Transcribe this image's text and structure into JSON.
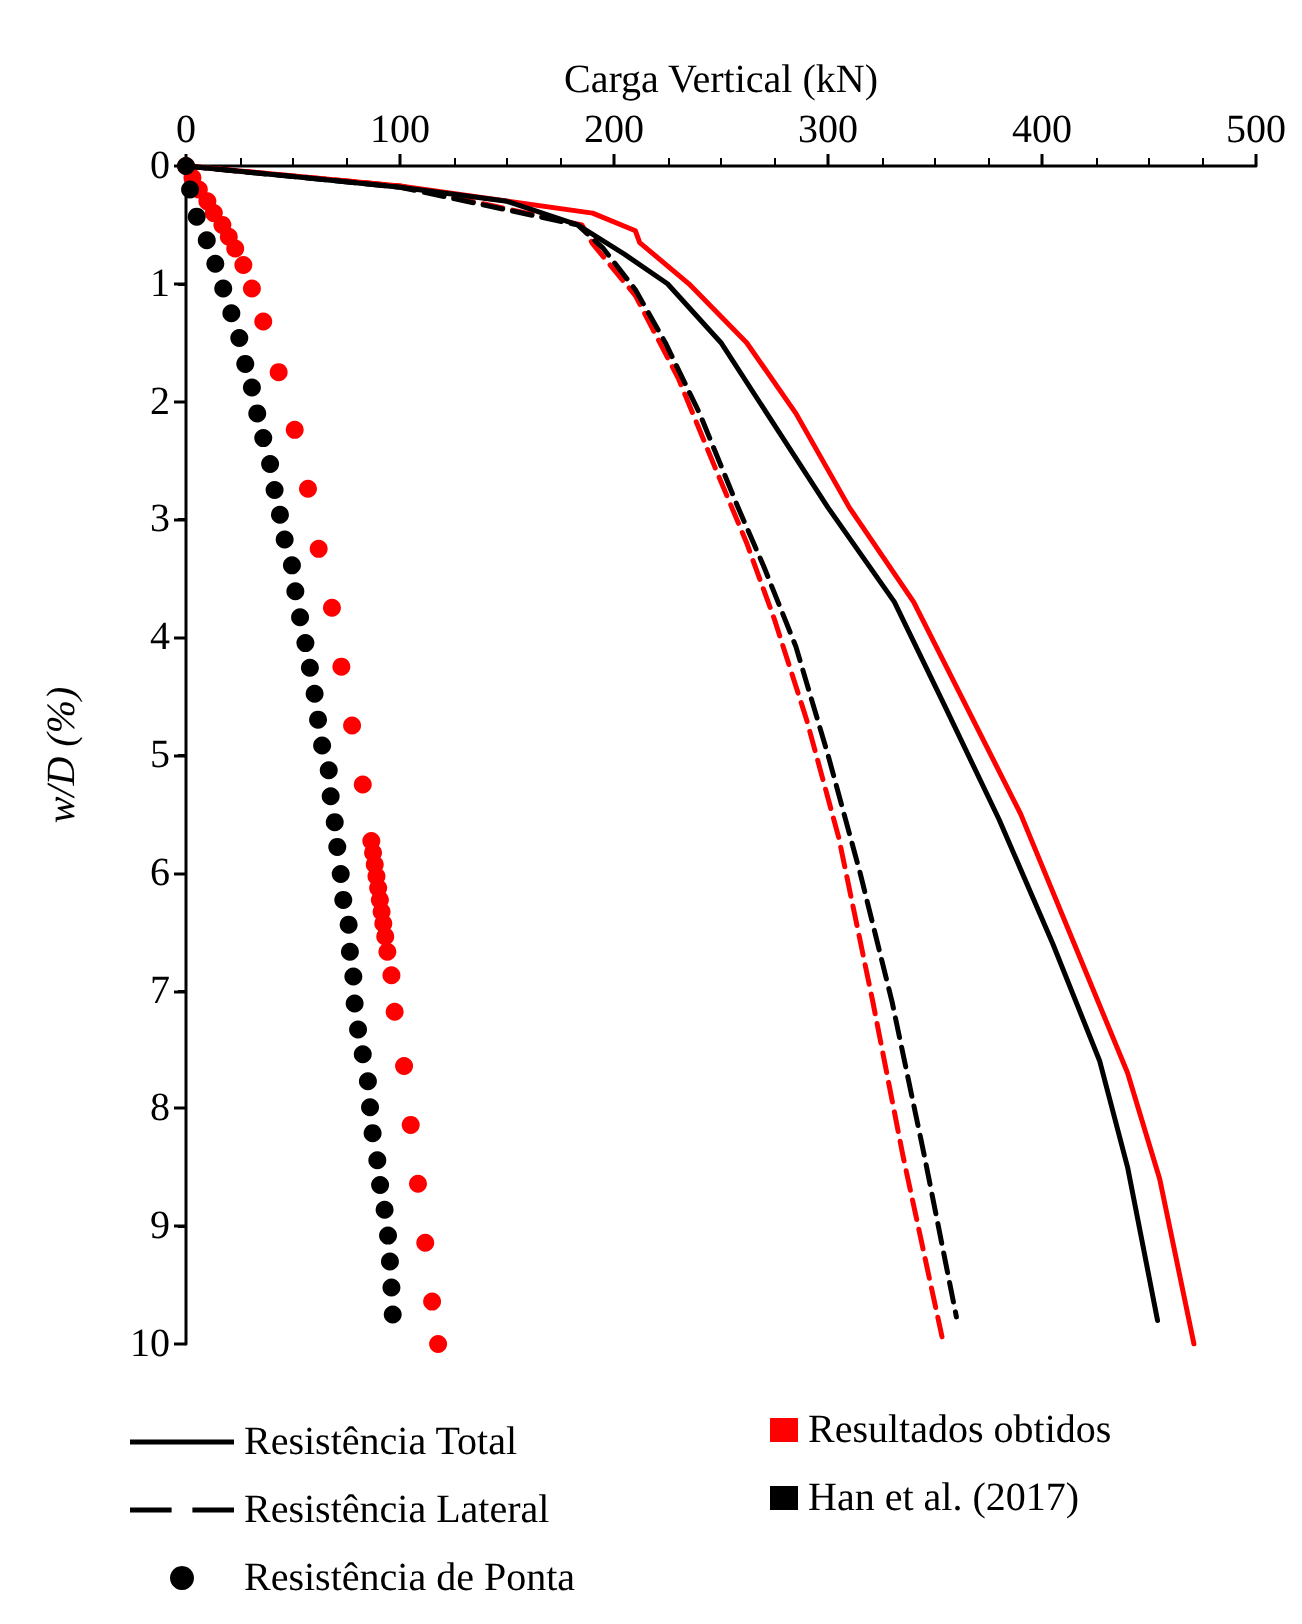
{
  "chart_data": {
    "type": "line",
    "xlabel": "Carga Vertical (kN)",
    "ylabel": "w/D (%)",
    "xlim": [
      0,
      500
    ],
    "xticks": [
      0,
      100,
      200,
      300,
      400,
      500
    ],
    "ylim": [
      10,
      0
    ],
    "yticks": [
      0,
      1,
      2,
      3,
      4,
      5,
      6,
      7,
      8,
      9,
      10
    ],
    "grid": false,
    "legend": "bottom",
    "series": [
      {
        "name": "Resistência Total",
        "color": "#000000",
        "line_style": "solid",
        "x": [
          0,
          50,
          100,
          150,
          183,
          205,
          225,
          250,
          275,
          300,
          331,
          355,
          380,
          405,
          427,
          440,
          454
        ],
        "values": [
          0,
          0.09,
          0.18,
          0.3,
          0.5,
          0.75,
          1,
          1.5,
          2.2,
          2.9,
          3.7,
          4.6,
          5.55,
          6.6,
          7.6,
          8.5,
          9.8
        ]
      },
      {
        "name": "Resistência Lateral",
        "color": "#000000",
        "line_style": "dashed",
        "x": [
          0,
          100,
          183,
          195,
          210,
          224,
          240,
          258,
          270,
          285,
          300,
          315,
          330,
          345,
          360
        ],
        "values": [
          0,
          0.18,
          0.5,
          0.7,
          1.05,
          1.5,
          2.1,
          2.9,
          3.4,
          4.08,
          5,
          6,
          7.1,
          8.4,
          9.77
        ]
      },
      {
        "name": "Resistência de Ponta",
        "type": "scatter",
        "color": "#000000",
        "marker": "circle",
        "x": [
          0,
          1.9,
          5,
          9.7,
          13.7,
          17.4,
          21.2,
          24.9,
          27.7,
          30.8,
          33.3,
          36.1,
          39.3,
          41.4,
          43.9,
          46.1,
          49.5,
          51.1,
          53.3,
          55.8,
          57.9,
          60.1,
          61.7,
          63.6,
          66.7,
          67.6,
          69.5,
          70.7,
          72.3,
          73.5,
          76,
          76.6,
          78.2,
          78.8,
          80.4,
          82.6,
          85,
          86,
          87.2,
          89.4,
          90.7,
          92.8,
          94.4,
          95.3,
          96,
          96.6
        ],
        "values": [
          0,
          0.2,
          0.43,
          0.63,
          0.83,
          1.04,
          1.25,
          1.46,
          1.68,
          1.88,
          2.1,
          2.31,
          2.53,
          2.75,
          2.96,
          3.17,
          3.39,
          3.61,
          3.83,
          4.05,
          4.26,
          4.48,
          4.7,
          4.92,
          5.13,
          5.35,
          5.57,
          5.78,
          6.01,
          6.23,
          6.44,
          6.67,
          6.88,
          7.11,
          7.33,
          7.54,
          7.77,
          7.99,
          8.21,
          8.44,
          8.65,
          8.86,
          9.08,
          9.3,
          9.52,
          9.75
        ]
      },
      {
        "color": "#ff0000",
        "line_style": "solid",
        "x": [
          0,
          100,
          190,
          210,
          212,
          235,
          262,
          285,
          310,
          340,
          365,
          390,
          415,
          440,
          455,
          471
        ],
        "values": [
          0,
          0.17,
          0.4,
          0.55,
          0.65,
          1,
          1.5,
          2.1,
          2.9,
          3.7,
          4.6,
          5.5,
          6.6,
          7.7,
          8.6,
          10
        ]
      },
      {
        "color": "#ff0000",
        "line_style": "dashed",
        "x": [
          0,
          100,
          185,
          190,
          210,
          230,
          247,
          262,
          275,
          290,
          305,
          321,
          335,
          354
        ],
        "values": [
          0,
          0.17,
          0.5,
          0.66,
          1.1,
          1.8,
          2.55,
          3.2,
          3.85,
          4.7,
          5.7,
          7.1,
          8.4,
          10
        ]
      },
      {
        "type": "scatter",
        "color": "#ff0000",
        "marker": "circle",
        "x": [
          0,
          3,
          6,
          10,
          13,
          17,
          20,
          23,
          26.8,
          30.8,
          36.1,
          43.3,
          50.8,
          57,
          62,
          68.2,
          72.6,
          77.6,
          82.6,
          86.6,
          87.4,
          88.2,
          89,
          89.8,
          90.6,
          91.4,
          92.2,
          93.1,
          94.1,
          96,
          97.5,
          101.9,
          105,
          108.4,
          111.8,
          115,
          117.8
        ],
        "values": [
          0,
          0.1,
          0.2,
          0.3,
          0.4,
          0.5,
          0.6,
          0.7,
          0.84,
          1.04,
          1.32,
          1.75,
          2.24,
          2.74,
          3.25,
          3.75,
          4.25,
          4.75,
          5.25,
          5.73,
          5.83,
          5.93,
          6.03,
          6.13,
          6.23,
          6.33,
          6.43,
          6.54,
          6.67,
          6.87,
          7.18,
          7.64,
          8.14,
          8.64,
          9.14,
          9.64,
          10
        ]
      },
      {
        "name": "Resultados obtidos",
        "type": "scatter",
        "color": "#ff0000",
        "marker": "square"
      },
      {
        "name": "Han et al. (2017)",
        "type": "scatter",
        "color": "#000000",
        "marker": "square"
      }
    ]
  }
}
